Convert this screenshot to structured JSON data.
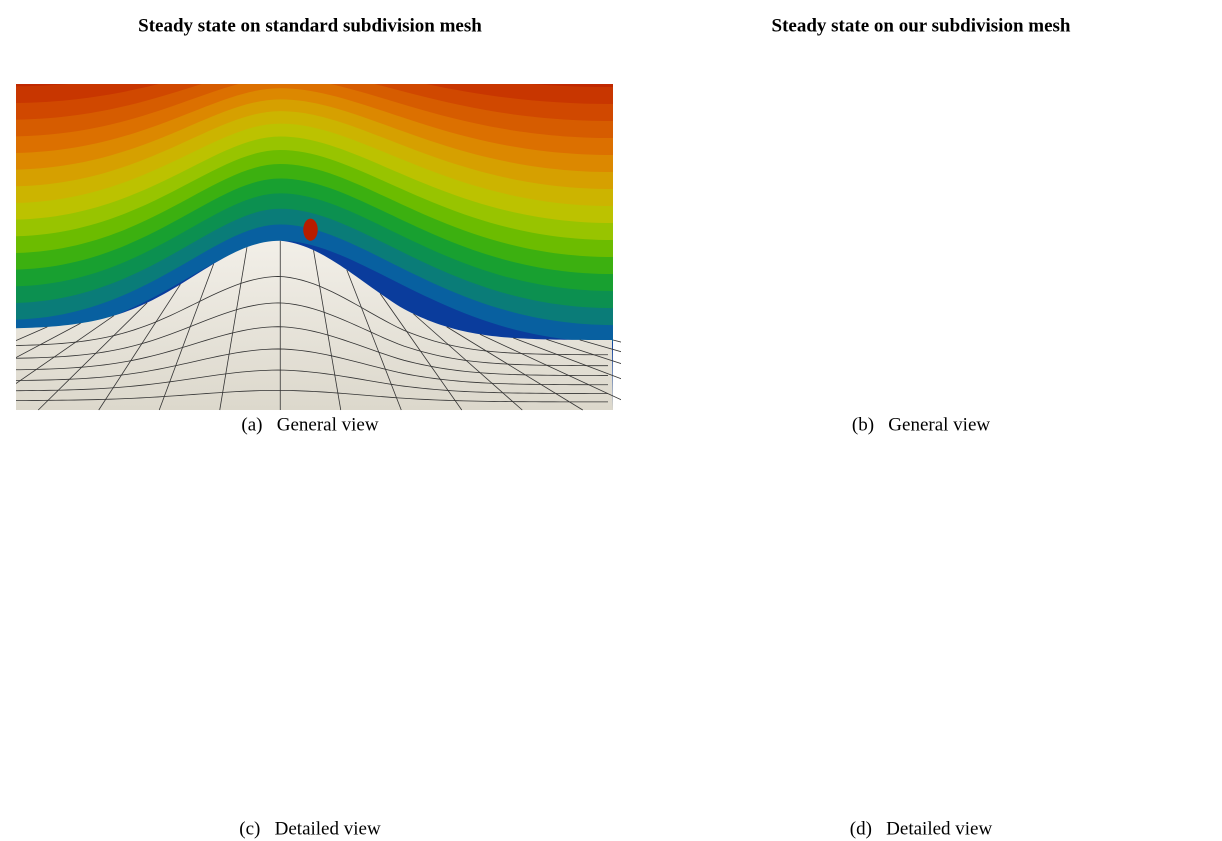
{
  "titles": [
    "Steady state on standard subdivision mesh",
    "Steady state on our subdivision mesh"
  ],
  "panels": [
    {
      "caption": "(a)   General view"
    },
    {
      "caption": "(b)   General view"
    },
    {
      "caption": "(c)   Detailed view"
    },
    {
      "caption": "(d)   Detailed view"
    }
  ]
}
